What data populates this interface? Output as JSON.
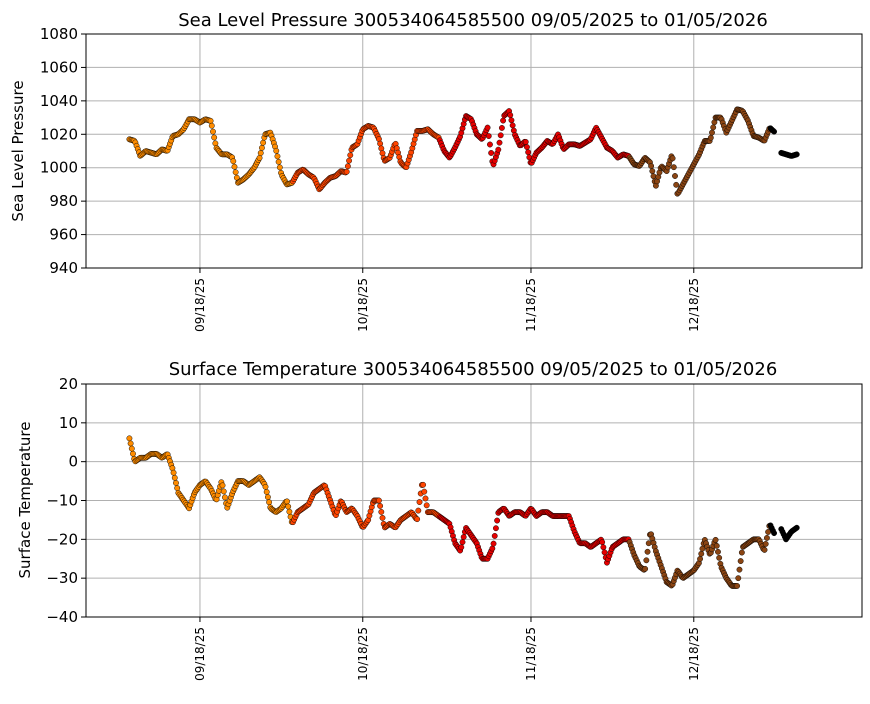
{
  "chart_data": [
    {
      "type": "scatter",
      "title": "Sea Level Pressure 300534064585500  09/05/2025 to 01/05/2026",
      "xlabel": "",
      "ylabel": "Sea Level Pressure",
      "ylim": [
        940,
        1080
      ],
      "yticks": [
        940,
        960,
        980,
        1000,
        1020,
        1040,
        1060,
        1080
      ],
      "yticklabels": [
        "940",
        "960",
        "980",
        "1000",
        "1020",
        "1040",
        "1060",
        "1080"
      ],
      "xlim_days": [
        -8,
        135
      ],
      "xticks_days": [
        13,
        43,
        74,
        104
      ],
      "xticklabels": [
        "09/18/25",
        "10/18/25",
        "11/18/25",
        "12/18/25"
      ],
      "grid": true,
      "segment_colors": [
        "#ff8c00",
        "#ff4500",
        "#e60000",
        "#8b4513",
        "#000000"
      ],
      "segment_breaks_days": [
        0,
        30,
        57,
        92,
        118,
        123
      ],
      "series": [
        {
          "name": "pressure",
          "keypoints_days": [
            0,
            1,
            2,
            3,
            4,
            5,
            6,
            7,
            8,
            9,
            10,
            11,
            12,
            13,
            14,
            15,
            16,
            17,
            18,
            19,
            20,
            21,
            22,
            23,
            24,
            25,
            26,
            27,
            28,
            29,
            30,
            31,
            32,
            33,
            34,
            35,
            36,
            37,
            38,
            39,
            40,
            41,
            42,
            43,
            44,
            45,
            46,
            47,
            48,
            49,
            50,
            51,
            52,
            53,
            54,
            55,
            56,
            57,
            58,
            59,
            60,
            61,
            62,
            63,
            64,
            65,
            66,
            67,
            68,
            69,
            70,
            71,
            72,
            73,
            74,
            75,
            76,
            77,
            78,
            79,
            80,
            81,
            82,
            83,
            84,
            85,
            86,
            87,
            88,
            89,
            90,
            91,
            92,
            93,
            94,
            95,
            96,
            97,
            98,
            99,
            100,
            101,
            102,
            103,
            104,
            105,
            106,
            107,
            108,
            109,
            110,
            111,
            112,
            113,
            114,
            115,
            116,
            117,
            118,
            119,
            120,
            121,
            122,
            123
          ],
          "keypoints_values": [
            1017,
            1016,
            1007,
            1010,
            1009,
            1008,
            1011,
            1010,
            1019,
            1020,
            1023,
            1029,
            1029,
            1027,
            1029,
            1028,
            1012,
            1008,
            1008,
            1006,
            991,
            993,
            996,
            1000,
            1006,
            1020,
            1021,
            1011,
            996,
            990,
            991,
            997,
            999,
            996,
            994,
            987,
            991,
            994,
            995,
            998,
            997,
            1012,
            1014,
            1023,
            1025,
            1024,
            1017,
            1004,
            1006,
            1015,
            1003,
            1000,
            1010,
            1022,
            1022,
            1023,
            1020,
            1018,
            1010,
            1006,
            1012,
            1019,
            1031,
            1029,
            1020,
            1017,
            1024,
            1001,
            1011,
            1031,
            1034,
            1020,
            1013,
            1016,
            1002,
            1009,
            1012,
            1016,
            1014,
            1020,
            1011,
            1014,
            1014,
            1013,
            1015,
            1017,
            1024,
            1018,
            1012,
            1010,
            1006,
            1008,
            1007,
            1002,
            1001,
            1006,
            1003,
            989,
            1001,
            998,
            1008,
            984,
            990,
            996,
            1002,
            1008,
            1016,
            1016,
            1030,
            1030,
            1021,
            1028,
            1035,
            1034,
            1028,
            1019,
            1018,
            1016,
            1024,
            1021,
            1009,
            1008,
            1007,
            1008
          ]
        }
      ]
    },
    {
      "type": "scatter",
      "title": "Surface Temperature 300534064585500  09/05/2025 to 01/05/2026",
      "xlabel": "",
      "ylabel": "Surface Temperature",
      "ylim": [
        -40,
        20
      ],
      "yticks": [
        -40,
        -30,
        -20,
        -10,
        0,
        10,
        20
      ],
      "yticklabels": [
        "−40",
        "−30",
        "−20",
        "−10",
        "0",
        "10",
        "20"
      ],
      "xlim_days": [
        -8,
        135
      ],
      "xticks_days": [
        13,
        43,
        74,
        104
      ],
      "xticklabels": [
        "09/18/25",
        "10/18/25",
        "11/18/25",
        "12/18/25"
      ],
      "grid": true,
      "segment_colors": [
        "#ff8c00",
        "#ff4500",
        "#e60000",
        "#8b4513",
        "#000000"
      ],
      "segment_breaks_days": [
        0,
        30,
        57,
        92,
        118,
        123
      ],
      "series": [
        {
          "name": "temperature",
          "keypoints_days": [
            0,
            1,
            2,
            3,
            4,
            5,
            6,
            7,
            8,
            9,
            10,
            11,
            12,
            13,
            14,
            15,
            16,
            17,
            18,
            19,
            20,
            21,
            22,
            23,
            24,
            25,
            26,
            27,
            28,
            29,
            30,
            31,
            32,
            33,
            34,
            35,
            36,
            37,
            38,
            39,
            40,
            41,
            42,
            43,
            44,
            45,
            46,
            47,
            48,
            49,
            50,
            51,
            52,
            53,
            54,
            55,
            56,
            57,
            58,
            59,
            60,
            61,
            62,
            63,
            64,
            65,
            66,
            67,
            68,
            69,
            70,
            71,
            72,
            73,
            74,
            75,
            76,
            77,
            78,
            79,
            80,
            81,
            82,
            83,
            84,
            85,
            86,
            87,
            88,
            89,
            90,
            91,
            92,
            93,
            94,
            95,
            96,
            97,
            98,
            99,
            100,
            101,
            102,
            103,
            104,
            105,
            106,
            107,
            108,
            109,
            110,
            111,
            112,
            113,
            114,
            115,
            116,
            117,
            118,
            119,
            120,
            121,
            122,
            123
          ],
          "keypoints_values": [
            6,
            0,
            1,
            1,
            2,
            2,
            1,
            2,
            -2,
            -8,
            -10,
            -12,
            -8,
            -6,
            -5,
            -7,
            -10,
            -5,
            -12,
            -8,
            -5,
            -5,
            -6,
            -5,
            -4,
            -6,
            -12,
            -13,
            -12,
            -10,
            -16,
            -13,
            -12,
            -11,
            -8,
            -7,
            -6,
            -10,
            -14,
            -10,
            -13,
            -12,
            -14,
            -17,
            -15,
            -10,
            -10,
            -17,
            -16,
            -17,
            -15,
            -14,
            -13,
            -15,
            -5,
            -13,
            -13,
            -14,
            -15,
            -16,
            -21,
            -23,
            -17,
            -19,
            -21,
            -25,
            -25,
            -22,
            -13,
            -12,
            -14,
            -13,
            -13,
            -14,
            -12,
            -14,
            -13,
            -13,
            -14,
            -14,
            -14,
            -14,
            -18,
            -21,
            -21,
            -22,
            -21,
            -20,
            -26,
            -22,
            -21,
            -20,
            -20,
            -24,
            -27,
            -28,
            -18,
            -23,
            -27,
            -31,
            -32,
            -28,
            -30,
            -29,
            -28,
            -26,
            -20,
            -24,
            -20,
            -27,
            -30,
            -32,
            -32,
            -22,
            -21,
            -20,
            -20,
            -23,
            -16,
            -19,
            -17,
            -20,
            -18,
            -17
          ]
        }
      ]
    }
  ]
}
